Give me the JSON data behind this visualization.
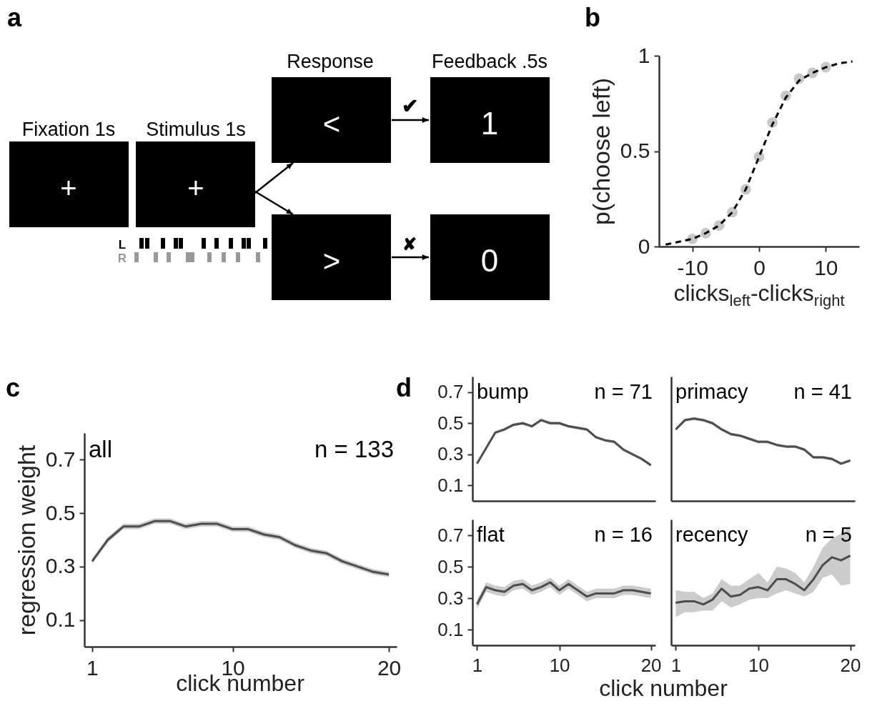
{
  "chart_data": [
    {
      "type": "other",
      "title": "a",
      "annotations": [
        "Fixation 1s",
        "Stimulus 1s",
        "Response",
        "Feedback .5s",
        "+",
        "+",
        "<",
        ">",
        "1",
        "0",
        "L",
        "R",
        "✔",
        "✘"
      ]
    },
    {
      "type": "line",
      "title": "b",
      "xlabel": "clicks$_{left}$-clicks$_{right}$",
      "ylabel": "p(choose left)",
      "xlim": [
        -15,
        15
      ],
      "xticks": [
        -10,
        0,
        10
      ],
      "ylim": [
        0,
        1
      ],
      "yticks": [
        0,
        0.5,
        1
      ],
      "line_style": "dashed",
      "series": [
        {
          "type": "scatter",
          "marker": "circle",
          "color": "#c8c8c8",
          "x": [
            -10,
            -8,
            -6,
            -4,
            -2,
            0,
            2,
            4,
            6,
            8,
            10
          ],
          "values": [
            0.04,
            0.07,
            0.11,
            0.18,
            0.3,
            0.47,
            0.65,
            0.79,
            0.88,
            0.91,
            0.94
          ]
        },
        {
          "type": "line",
          "color": "#000000",
          "x": [
            -14,
            -12,
            -10,
            -8,
            -6,
            -4,
            -2,
            0,
            2,
            4,
            6,
            8,
            10,
            12,
            14
          ],
          "values": [
            0.01,
            0.025,
            0.04,
            0.07,
            0.11,
            0.18,
            0.3,
            0.47,
            0.64,
            0.78,
            0.87,
            0.91,
            0.94,
            0.96,
            0.97
          ]
        }
      ]
    },
    {
      "type": "line",
      "title": "c",
      "xlabel": "click number",
      "ylabel": "regression weight",
      "annotations": [
        "all",
        "n = 133"
      ],
      "xlim": [
        0.5,
        20.5
      ],
      "xticks": [
        1,
        10,
        20
      ],
      "ylim": [
        0,
        0.8
      ],
      "yticks": [
        0.1,
        0.3,
        0.5,
        0.7
      ],
      "x": [
        1,
        2,
        3,
        4,
        5,
        6,
        7,
        8,
        9,
        10,
        11,
        12,
        13,
        14,
        15,
        16,
        17,
        18,
        19,
        20
      ],
      "series": [
        {
          "color": "#4d4d4d",
          "values": [
            0.32,
            0.4,
            0.45,
            0.45,
            0.47,
            0.47,
            0.45,
            0.46,
            0.46,
            0.44,
            0.44,
            0.42,
            0.41,
            0.38,
            0.36,
            0.35,
            0.32,
            0.3,
            0.28,
            0.27
          ],
          "lower": [
            0.31,
            0.39,
            0.44,
            0.44,
            0.46,
            0.46,
            0.44,
            0.45,
            0.45,
            0.43,
            0.43,
            0.41,
            0.4,
            0.37,
            0.35,
            0.34,
            0.31,
            0.29,
            0.27,
            0.26
          ],
          "upper": [
            0.33,
            0.41,
            0.46,
            0.46,
            0.48,
            0.48,
            0.46,
            0.47,
            0.47,
            0.45,
            0.45,
            0.43,
            0.42,
            0.39,
            0.37,
            0.36,
            0.33,
            0.31,
            0.29,
            0.28
          ]
        }
      ]
    },
    {
      "type": "line",
      "title": "d",
      "annotations": [
        "bump",
        "n = 71"
      ],
      "tick_labels": "y",
      "xlim": [
        0.5,
        20.5
      ],
      "xticks": [
        1,
        10,
        20
      ],
      "ylim": [
        0,
        0.8
      ],
      "yticks": [
        0.1,
        0.3,
        0.5,
        0.7
      ],
      "x": [
        1,
        2,
        3,
        4,
        5,
        6,
        7,
        8,
        9,
        10,
        11,
        12,
        13,
        14,
        15,
        16,
        17,
        18,
        19,
        20
      ],
      "series": [
        {
          "color": "#4d4d4d",
          "values": [
            0.24,
            0.34,
            0.44,
            0.46,
            0.49,
            0.5,
            0.48,
            0.52,
            0.5,
            0.5,
            0.48,
            0.47,
            0.46,
            0.41,
            0.39,
            0.38,
            0.33,
            0.3,
            0.27,
            0.23
          ],
          "lower": [
            0.23,
            0.33,
            0.43,
            0.45,
            0.48,
            0.49,
            0.47,
            0.51,
            0.49,
            0.49,
            0.47,
            0.46,
            0.45,
            0.4,
            0.38,
            0.37,
            0.32,
            0.29,
            0.26,
            0.22
          ],
          "upper": [
            0.25,
            0.35,
            0.45,
            0.47,
            0.5,
            0.51,
            0.49,
            0.53,
            0.51,
            0.51,
            0.49,
            0.48,
            0.47,
            0.42,
            0.4,
            0.39,
            0.34,
            0.31,
            0.28,
            0.24
          ]
        }
      ]
    },
    {
      "type": "line",
      "annotations": [
        "primacy",
        "n = 41"
      ],
      "tick_labels": false,
      "xlim": [
        0.5,
        20.5
      ],
      "xticks": [
        1,
        10,
        20
      ],
      "ylim": [
        0,
        0.8
      ],
      "yticks": [
        0.1,
        0.3,
        0.5,
        0.7
      ],
      "x": [
        1,
        2,
        3,
        4,
        5,
        6,
        7,
        8,
        9,
        10,
        11,
        12,
        13,
        14,
        15,
        16,
        17,
        18,
        19,
        20
      ],
      "series": [
        {
          "color": "#4d4d4d",
          "values": [
            0.46,
            0.52,
            0.53,
            0.52,
            0.5,
            0.46,
            0.43,
            0.42,
            0.4,
            0.38,
            0.38,
            0.36,
            0.35,
            0.35,
            0.33,
            0.28,
            0.28,
            0.27,
            0.24,
            0.26
          ],
          "lower": [
            0.45,
            0.51,
            0.52,
            0.51,
            0.49,
            0.45,
            0.42,
            0.41,
            0.39,
            0.37,
            0.37,
            0.35,
            0.34,
            0.34,
            0.32,
            0.27,
            0.27,
            0.26,
            0.23,
            0.25
          ],
          "upper": [
            0.47,
            0.53,
            0.54,
            0.53,
            0.51,
            0.47,
            0.44,
            0.43,
            0.41,
            0.39,
            0.39,
            0.37,
            0.36,
            0.36,
            0.34,
            0.29,
            0.29,
            0.28,
            0.25,
            0.27
          ]
        }
      ]
    },
    {
      "type": "line",
      "xlabel": "click number",
      "annotations": [
        "flat",
        "n = 16"
      ],
      "xlim": [
        0.5,
        20.5
      ],
      "xticks": [
        1,
        10,
        20
      ],
      "ylim": [
        0,
        0.8
      ],
      "yticks": [
        0.1,
        0.3,
        0.5,
        0.7
      ],
      "x": [
        1,
        2,
        3,
        4,
        5,
        6,
        7,
        8,
        9,
        10,
        11,
        12,
        13,
        14,
        15,
        16,
        17,
        18,
        19,
        20
      ],
      "series": [
        {
          "color": "#4d4d4d",
          "values": [
            0.26,
            0.37,
            0.35,
            0.34,
            0.38,
            0.39,
            0.35,
            0.37,
            0.4,
            0.35,
            0.39,
            0.35,
            0.31,
            0.33,
            0.33,
            0.33,
            0.35,
            0.35,
            0.34,
            0.33
          ],
          "lower": [
            0.23,
            0.34,
            0.32,
            0.31,
            0.35,
            0.36,
            0.32,
            0.34,
            0.37,
            0.32,
            0.36,
            0.32,
            0.28,
            0.3,
            0.3,
            0.3,
            0.32,
            0.32,
            0.31,
            0.3
          ],
          "upper": [
            0.29,
            0.4,
            0.38,
            0.37,
            0.41,
            0.42,
            0.38,
            0.4,
            0.43,
            0.38,
            0.42,
            0.38,
            0.34,
            0.36,
            0.36,
            0.36,
            0.38,
            0.38,
            0.37,
            0.36
          ]
        }
      ]
    },
    {
      "type": "line",
      "annotations": [
        "recency",
        "n = 5"
      ],
      "tick_labels": "x",
      "xlim": [
        0.5,
        20.5
      ],
      "xticks": [
        1,
        10,
        20
      ],
      "ylim": [
        0,
        0.8
      ],
      "yticks": [
        0.1,
        0.3,
        0.5,
        0.7
      ],
      "x": [
        1,
        2,
        3,
        4,
        5,
        6,
        7,
        8,
        9,
        10,
        11,
        12,
        13,
        14,
        15,
        16,
        17,
        18,
        19,
        20
      ],
      "series": [
        {
          "color": "#4d4d4d",
          "values": [
            0.27,
            0.28,
            0.28,
            0.26,
            0.29,
            0.36,
            0.31,
            0.32,
            0.36,
            0.37,
            0.35,
            0.42,
            0.42,
            0.39,
            0.35,
            0.42,
            0.51,
            0.56,
            0.54,
            0.57
          ],
          "lower": [
            0.18,
            0.21,
            0.21,
            0.22,
            0.22,
            0.28,
            0.24,
            0.26,
            0.29,
            0.3,
            0.3,
            0.33,
            0.35,
            0.33,
            0.31,
            0.34,
            0.43,
            0.45,
            0.38,
            0.39
          ],
          "upper": [
            0.35,
            0.34,
            0.34,
            0.3,
            0.33,
            0.42,
            0.38,
            0.38,
            0.42,
            0.46,
            0.4,
            0.5,
            0.49,
            0.46,
            0.4,
            0.5,
            0.62,
            0.68,
            0.71,
            0.76
          ]
        }
      ]
    }
  ]
}
